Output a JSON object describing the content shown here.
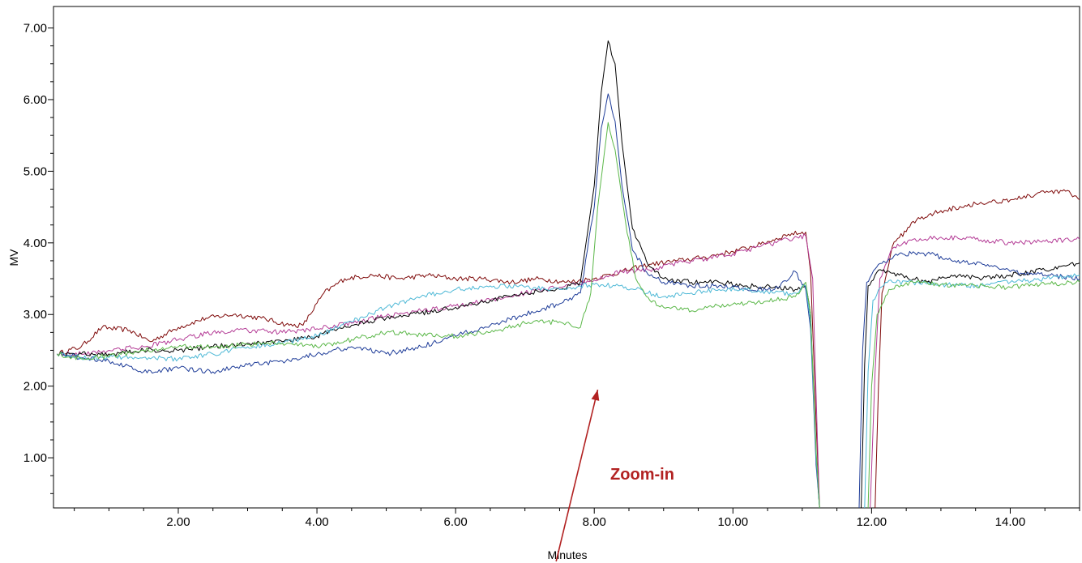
{
  "chart_data": {
    "type": "line",
    "xlabel": "Minutes",
    "ylabel": "MV",
    "xlim": [
      0.2,
      15.0
    ],
    "ylim": [
      0.3,
      7.3
    ],
    "xticks": [
      2.0,
      4.0,
      6.0,
      8.0,
      10.0,
      12.0,
      14.0
    ],
    "xtick_labels": [
      "2.00",
      "4.00",
      "6.00",
      "8.00",
      "10.00",
      "12.00",
      "14.00"
    ],
    "yticks": [
      1.0,
      2.0,
      3.0,
      4.0,
      5.0,
      6.0,
      7.0
    ],
    "ytick_labels": [
      "1.00",
      "2.00",
      "3.00",
      "4.00",
      "5.00",
      "6.00",
      "7.00"
    ],
    "grid": false,
    "legend": "none",
    "annotation": {
      "text": "Zoom-in",
      "color": "#b22222",
      "arrow_tip": [
        8.05,
        1.95
      ],
      "arrow_tail": [
        7.45,
        -0.6
      ]
    },
    "series": [
      {
        "color": "#7f0a0a",
        "points": [
          [
            0.25,
            2.45
          ],
          [
            0.6,
            2.55
          ],
          [
            0.9,
            2.82
          ],
          [
            1.3,
            2.78
          ],
          [
            1.6,
            2.62
          ],
          [
            2.0,
            2.82
          ],
          [
            2.4,
            2.95
          ],
          [
            2.8,
            3.0
          ],
          [
            3.2,
            2.95
          ],
          [
            3.6,
            2.85
          ],
          [
            3.8,
            2.85
          ],
          [
            4.1,
            3.3
          ],
          [
            4.4,
            3.5
          ],
          [
            4.8,
            3.55
          ],
          [
            5.2,
            3.5
          ],
          [
            5.6,
            3.55
          ],
          [
            6.0,
            3.5
          ],
          [
            6.4,
            3.5
          ],
          [
            6.8,
            3.45
          ],
          [
            7.2,
            3.5
          ],
          [
            7.6,
            3.45
          ],
          [
            8.0,
            3.5
          ],
          [
            8.4,
            3.6
          ],
          [
            8.8,
            3.7
          ],
          [
            9.2,
            3.75
          ],
          [
            9.6,
            3.8
          ],
          [
            10.0,
            3.88
          ],
          [
            10.4,
            3.98
          ],
          [
            10.8,
            4.12
          ],
          [
            11.05,
            4.15
          ],
          [
            11.12,
            3.6
          ],
          [
            11.2,
            1.5
          ],
          [
            11.25,
            0.3
          ]
        ]
      },
      {
        "color": "#7f0a0a",
        "points": [
          [
            12.05,
            0.3
          ],
          [
            12.1,
            2.0
          ],
          [
            12.15,
            3.3
          ],
          [
            12.3,
            3.95
          ],
          [
            12.6,
            4.3
          ],
          [
            13.0,
            4.45
          ],
          [
            13.5,
            4.55
          ],
          [
            14.0,
            4.6
          ],
          [
            14.5,
            4.7
          ],
          [
            14.8,
            4.72
          ],
          [
            15.0,
            4.6
          ]
        ]
      },
      {
        "color": "#b43c96",
        "points": [
          [
            0.25,
            2.45
          ],
          [
            0.6,
            2.45
          ],
          [
            1.0,
            2.5
          ],
          [
            1.5,
            2.55
          ],
          [
            2.0,
            2.65
          ],
          [
            2.5,
            2.75
          ],
          [
            3.0,
            2.78
          ],
          [
            3.5,
            2.75
          ],
          [
            4.0,
            2.8
          ],
          [
            4.5,
            2.88
          ],
          [
            5.0,
            2.98
          ],
          [
            5.5,
            3.05
          ],
          [
            6.0,
            3.12
          ],
          [
            6.5,
            3.2
          ],
          [
            7.0,
            3.3
          ],
          [
            7.5,
            3.38
          ],
          [
            8.0,
            3.48
          ],
          [
            8.4,
            3.6
          ],
          [
            8.8,
            3.62
          ],
          [
            9.2,
            3.72
          ],
          [
            9.6,
            3.78
          ],
          [
            10.0,
            3.85
          ],
          [
            10.4,
            3.95
          ],
          [
            10.8,
            4.05
          ],
          [
            11.05,
            4.1
          ],
          [
            11.15,
            3.5
          ],
          [
            11.22,
            1.2
          ],
          [
            11.25,
            0.3
          ]
        ]
      },
      {
        "color": "#b43c96",
        "points": [
          [
            11.98,
            0.3
          ],
          [
            12.05,
            2.2
          ],
          [
            12.12,
            3.5
          ],
          [
            12.3,
            3.92
          ],
          [
            12.6,
            4.05
          ],
          [
            13.0,
            4.08
          ],
          [
            13.5,
            4.05
          ],
          [
            14.0,
            4.0
          ],
          [
            14.5,
            4.02
          ],
          [
            15.0,
            4.05
          ]
        ]
      },
      {
        "color": "#000000",
        "points": [
          [
            0.25,
            2.45
          ],
          [
            0.6,
            2.45
          ],
          [
            1.0,
            2.45
          ],
          [
            1.5,
            2.5
          ],
          [
            2.0,
            2.5
          ],
          [
            2.5,
            2.55
          ],
          [
            3.0,
            2.6
          ],
          [
            3.5,
            2.62
          ],
          [
            4.0,
            2.7
          ],
          [
            4.5,
            2.85
          ],
          [
            5.0,
            2.95
          ],
          [
            5.5,
            3.02
          ],
          [
            6.0,
            3.1
          ],
          [
            6.5,
            3.2
          ],
          [
            7.0,
            3.3
          ],
          [
            7.5,
            3.35
          ],
          [
            7.8,
            3.45
          ],
          [
            8.0,
            4.8
          ],
          [
            8.1,
            6.1
          ],
          [
            8.2,
            6.82
          ],
          [
            8.3,
            6.5
          ],
          [
            8.4,
            5.4
          ],
          [
            8.55,
            4.2
          ],
          [
            8.75,
            3.75
          ],
          [
            9.0,
            3.5
          ],
          [
            9.4,
            3.45
          ],
          [
            9.8,
            3.45
          ],
          [
            10.2,
            3.4
          ],
          [
            10.6,
            3.38
          ],
          [
            10.9,
            3.35
          ],
          [
            11.05,
            3.4
          ],
          [
            11.12,
            3.0
          ],
          [
            11.2,
            1.0
          ],
          [
            11.25,
            0.3
          ]
        ]
      },
      {
        "color": "#000000",
        "points": [
          [
            11.85,
            0.3
          ],
          [
            11.9,
            2.3
          ],
          [
            11.95,
            3.4
          ],
          [
            12.1,
            3.62
          ],
          [
            12.4,
            3.55
          ],
          [
            12.8,
            3.45
          ],
          [
            13.2,
            3.55
          ],
          [
            13.6,
            3.5
          ],
          [
            14.0,
            3.55
          ],
          [
            14.5,
            3.62
          ],
          [
            15.0,
            3.72
          ]
        ]
      },
      {
        "color": "#1f3d99",
        "points": [
          [
            0.25,
            2.45
          ],
          [
            0.6,
            2.4
          ],
          [
            1.0,
            2.35
          ],
          [
            1.5,
            2.2
          ],
          [
            2.0,
            2.25
          ],
          [
            2.5,
            2.2
          ],
          [
            3.0,
            2.3
          ],
          [
            3.5,
            2.35
          ],
          [
            4.0,
            2.45
          ],
          [
            4.5,
            2.55
          ],
          [
            5.0,
            2.45
          ],
          [
            5.5,
            2.55
          ],
          [
            6.0,
            2.7
          ],
          [
            6.5,
            2.85
          ],
          [
            7.0,
            3.0
          ],
          [
            7.5,
            3.15
          ],
          [
            7.8,
            3.3
          ],
          [
            8.0,
            4.5
          ],
          [
            8.1,
            5.6
          ],
          [
            8.2,
            6.08
          ],
          [
            8.3,
            5.7
          ],
          [
            8.4,
            4.8
          ],
          [
            8.55,
            3.9
          ],
          [
            8.75,
            3.6
          ],
          [
            9.0,
            3.45
          ],
          [
            9.4,
            3.4
          ],
          [
            9.8,
            3.4
          ],
          [
            10.2,
            3.35
          ],
          [
            10.6,
            3.35
          ],
          [
            10.9,
            3.6
          ],
          [
            11.05,
            3.35
          ],
          [
            11.12,
            2.8
          ],
          [
            11.2,
            0.9
          ],
          [
            11.25,
            0.3
          ]
        ]
      },
      {
        "color": "#1f3d99",
        "points": [
          [
            11.82,
            0.3
          ],
          [
            11.87,
            2.5
          ],
          [
            11.93,
            3.45
          ],
          [
            12.1,
            3.7
          ],
          [
            12.4,
            3.85
          ],
          [
            12.8,
            3.85
          ],
          [
            13.2,
            3.75
          ],
          [
            13.6,
            3.7
          ],
          [
            14.0,
            3.6
          ],
          [
            14.5,
            3.55
          ],
          [
            15.0,
            3.5
          ]
        ]
      },
      {
        "color": "#4db8d6",
        "points": [
          [
            0.25,
            2.45
          ],
          [
            0.6,
            2.4
          ],
          [
            1.0,
            2.4
          ],
          [
            1.5,
            2.4
          ],
          [
            2.0,
            2.38
          ],
          [
            2.5,
            2.45
          ],
          [
            3.0,
            2.55
          ],
          [
            3.5,
            2.6
          ],
          [
            4.0,
            2.7
          ],
          [
            4.5,
            2.9
          ],
          [
            5.0,
            3.1
          ],
          [
            5.5,
            3.25
          ],
          [
            6.0,
            3.35
          ],
          [
            6.5,
            3.4
          ],
          [
            7.0,
            3.38
          ],
          [
            7.5,
            3.35
          ],
          [
            7.8,
            3.4
          ],
          [
            8.0,
            3.42
          ],
          [
            8.3,
            3.4
          ],
          [
            8.6,
            3.35
          ],
          [
            9.0,
            3.25
          ],
          [
            9.4,
            3.3
          ],
          [
            9.8,
            3.35
          ],
          [
            10.2,
            3.35
          ],
          [
            10.6,
            3.3
          ],
          [
            10.9,
            3.3
          ],
          [
            11.05,
            3.4
          ],
          [
            11.12,
            2.9
          ],
          [
            11.2,
            1.0
          ],
          [
            11.25,
            0.3
          ]
        ]
      },
      {
        "color": "#4db8d6",
        "points": [
          [
            11.9,
            0.3
          ],
          [
            11.95,
            2.2
          ],
          [
            12.02,
            3.2
          ],
          [
            12.2,
            3.45
          ],
          [
            12.6,
            3.45
          ],
          [
            13.0,
            3.42
          ],
          [
            13.5,
            3.4
          ],
          [
            14.0,
            3.45
          ],
          [
            14.5,
            3.5
          ],
          [
            15.0,
            3.55
          ]
        ]
      },
      {
        "color": "#5cb84a",
        "points": [
          [
            0.25,
            2.45
          ],
          [
            0.6,
            2.38
          ],
          [
            1.0,
            2.42
          ],
          [
            1.5,
            2.5
          ],
          [
            2.0,
            2.55
          ],
          [
            2.5,
            2.55
          ],
          [
            3.0,
            2.58
          ],
          [
            3.5,
            2.6
          ],
          [
            4.0,
            2.55
          ],
          [
            4.5,
            2.65
          ],
          [
            5.0,
            2.75
          ],
          [
            5.5,
            2.72
          ],
          [
            6.0,
            2.7
          ],
          [
            6.5,
            2.75
          ],
          [
            7.0,
            2.88
          ],
          [
            7.5,
            2.9
          ],
          [
            7.8,
            2.82
          ],
          [
            7.95,
            3.3
          ],
          [
            8.05,
            4.5
          ],
          [
            8.2,
            5.68
          ],
          [
            8.3,
            5.3
          ],
          [
            8.45,
            4.3
          ],
          [
            8.6,
            3.5
          ],
          [
            8.8,
            3.2
          ],
          [
            9.0,
            3.1
          ],
          [
            9.4,
            3.05
          ],
          [
            9.8,
            3.12
          ],
          [
            10.2,
            3.15
          ],
          [
            10.6,
            3.2
          ],
          [
            10.9,
            3.25
          ],
          [
            11.05,
            3.45
          ],
          [
            11.12,
            3.0
          ],
          [
            11.2,
            1.1
          ],
          [
            11.25,
            0.3
          ]
        ]
      },
      {
        "color": "#5cb84a",
        "points": [
          [
            11.95,
            0.3
          ],
          [
            12.0,
            2.0
          ],
          [
            12.08,
            3.0
          ],
          [
            12.25,
            3.35
          ],
          [
            12.6,
            3.45
          ],
          [
            13.0,
            3.42
          ],
          [
            13.5,
            3.4
          ],
          [
            14.0,
            3.38
          ],
          [
            14.5,
            3.42
          ],
          [
            15.0,
            3.45
          ]
        ]
      }
    ]
  }
}
